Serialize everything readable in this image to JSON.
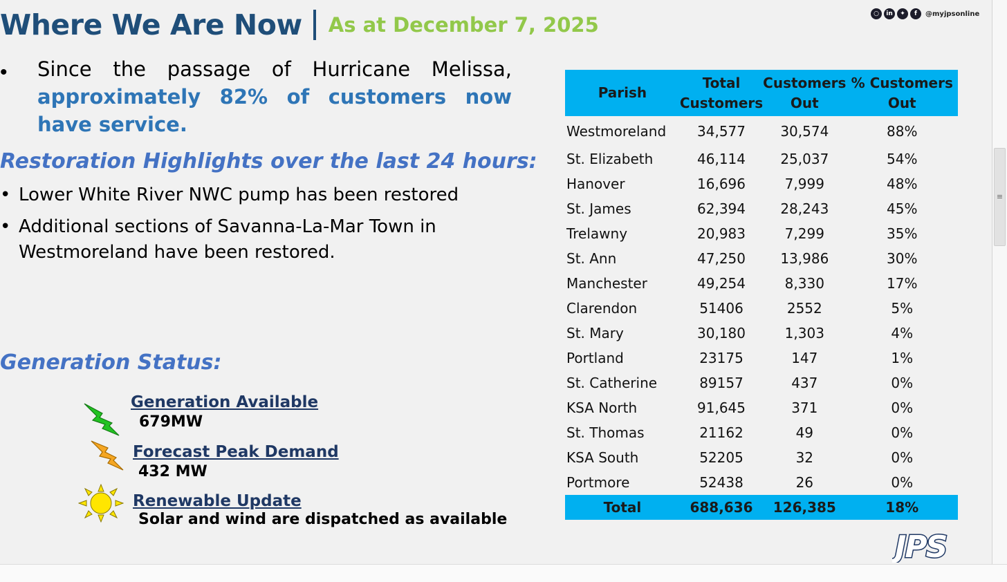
{
  "header": {
    "title": "Where We Are Now",
    "date_text": "As at December 7, 2025",
    "social_handle": "@myjpsonline"
  },
  "intro": {
    "text_part1": "Since the passage of Hurricane Melissa,",
    "text_highlight": "approximately 82% of customers now have service."
  },
  "highlights": {
    "heading": "Restoration Highlights over the last 24 hours:",
    "items": [
      "Lower White River NWC pump has been restored",
      "Additional sections of Savanna-La-Mar Town in Westmoreland have been restored."
    ]
  },
  "generation": {
    "heading": "Generation Status:",
    "available_label": "Generation Available",
    "available_value": "679MW",
    "peak_label": "Forecast Peak Demand",
    "peak_value": "432 MW",
    "renewable_label": "Renewable Update",
    "renewable_value": "Solar and wind are dispatched as available"
  },
  "table": {
    "headers": {
      "parish": "Parish",
      "total_line1": "Total",
      "total_line2": "Customers",
      "out_line1": "Customers",
      "out_line2": "Out",
      "pct_line1": "% Customers",
      "pct_line2": "Out"
    },
    "rows": [
      {
        "parish": "Westmoreland",
        "total": "34,577",
        "out": "30,574",
        "pct": "88%"
      },
      {
        "parish": "St. Elizabeth",
        "total": "46,114",
        "out": "25,037",
        "pct": "54%"
      },
      {
        "parish": "Hanover",
        "total": "16,696",
        "out": "7,999",
        "pct": "48%"
      },
      {
        "parish": "St. James",
        "total": "62,394",
        "out": "28,243",
        "pct": "45%"
      },
      {
        "parish": "Trelawny",
        "total": "20,983",
        "out": "7,299",
        "pct": "35%"
      },
      {
        "parish": "St. Ann",
        "total": "47,250",
        "out": "13,986",
        "pct": "30%"
      },
      {
        "parish": "Manchester",
        "total": "49,254",
        "out": "8,330",
        "pct": "17%"
      },
      {
        "parish": "Clarendon",
        "total": "51406",
        "out": "2552",
        "pct": "5%"
      },
      {
        "parish": "St. Mary",
        "total": "30,180",
        "out": "1,303",
        "pct": "4%"
      },
      {
        "parish": "Portland",
        "total": "23175",
        "out": "147",
        "pct": "1%"
      },
      {
        "parish": "St. Catherine",
        "total": "89157",
        "out": "437",
        "pct": "0%"
      },
      {
        "parish": "KSA North",
        "total": "91,645",
        "out": "371",
        "pct": "0%"
      },
      {
        "parish": "St. Thomas",
        "total": "21162",
        "out": "49",
        "pct": "0%"
      },
      {
        "parish": "KSA South",
        "total": "52205",
        "out": "32",
        "pct": "0%"
      },
      {
        "parish": "Portmore",
        "total": "52438",
        "out": "26",
        "pct": "0%"
      }
    ],
    "total": {
      "label": "Total",
      "total": "688,636",
      "out": "126,385",
      "pct": "18%"
    }
  },
  "logo_text": "JPS",
  "colors": {
    "title_blue": "#1f4e79",
    "date_green": "#92c84a",
    "section_blue": "#4472c4",
    "highlight_blue": "#2e75b6",
    "table_header": "#00b0f0",
    "bolt_green": "#22c322",
    "bolt_orange": "#f5a623",
    "sun_yellow": "#ffe600"
  },
  "icons": [
    "instagram-icon",
    "linkedin-icon",
    "twitter-icon",
    "facebook-icon",
    "lightning-green-icon",
    "lightning-orange-icon",
    "sun-icon"
  ]
}
